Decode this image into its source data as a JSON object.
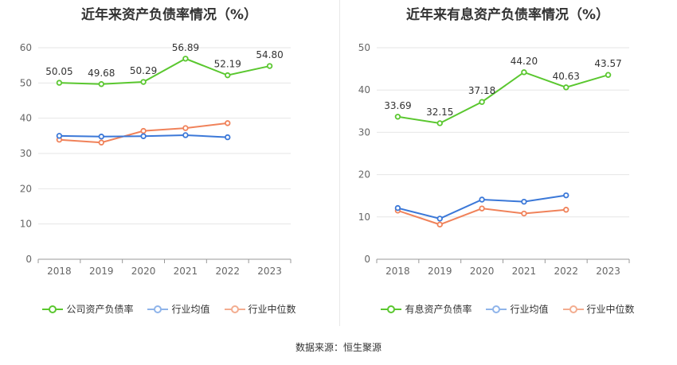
{
  "chart_data": [
    {
      "type": "line",
      "title": "近年来资产负债率情况（%）",
      "categories": [
        "2018",
        "2019",
        "2020",
        "2021",
        "2022",
        "2023"
      ],
      "ylim": [
        0,
        60
      ],
      "yticks": [
        0,
        10,
        20,
        30,
        40,
        50,
        60
      ],
      "grid": true,
      "legend_position": "bottom",
      "series": [
        {
          "name": "公司资产负债率",
          "color": "#5ac72f",
          "values": [
            50.05,
            49.68,
            50.29,
            56.89,
            52.19,
            54.8
          ],
          "labels": [
            "50.05",
            "49.68",
            "50.29",
            "56.89",
            "52.19",
            "54.80"
          ]
        },
        {
          "name": "行业均值",
          "color": "#3b78d8",
          "values": [
            35.0,
            34.8,
            34.9,
            35.2,
            34.6,
            null
          ]
        },
        {
          "name": "行业中位数",
          "color": "#f0825a",
          "values": [
            33.9,
            33.1,
            36.4,
            37.2,
            38.6,
            null
          ]
        }
      ]
    },
    {
      "type": "line",
      "title": "近年来有息资产负债率情况（%）",
      "categories": [
        "2018",
        "2019",
        "2020",
        "2021",
        "2022",
        "2023"
      ],
      "ylim": [
        0,
        50
      ],
      "yticks": [
        0,
        10,
        20,
        30,
        40,
        50
      ],
      "grid": true,
      "legend_position": "bottom",
      "series": [
        {
          "name": "有息资产负债率",
          "color": "#5ac72f",
          "values": [
            33.69,
            32.15,
            37.18,
            44.2,
            40.63,
            43.57
          ],
          "labels": [
            "33.69",
            "32.15",
            "37.18",
            "44.20",
            "40.63",
            "43.57"
          ]
        },
        {
          "name": "行业均值",
          "color": "#3b78d8",
          "values": [
            12.1,
            9.6,
            14.1,
            13.6,
            15.1,
            null
          ]
        },
        {
          "name": "行业中位数",
          "color": "#f0825a",
          "values": [
            11.5,
            8.2,
            12.0,
            10.8,
            11.7,
            null
          ]
        }
      ]
    }
  ],
  "source_text": "数据来源：恒生聚源",
  "legend_swatch_colors": {
    "light_green": "#5ac72f",
    "light_blue": "#8fb4ea",
    "light_orange": "#f3ad90"
  }
}
